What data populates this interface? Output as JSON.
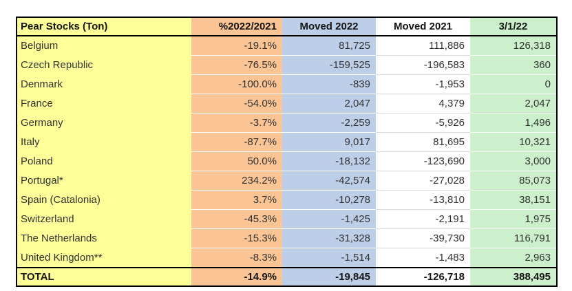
{
  "colors": {
    "page_background": "#ffffff",
    "table_border": "#000000",
    "text": "#313131",
    "header_text": "#141414",
    "col_country_bg": "#FFFF99",
    "col_pct_bg": "#FAC494",
    "col_moved2022_bg": "#BDCEE8",
    "col_moved2021_bg": "#FFFFFF",
    "col_stock_bg": "#CBF0CB",
    "row_separator_tinted": "rgba(255,255,255,0.55)",
    "row_separator_plain": "#d9d9d9"
  },
  "table": {
    "columns": [
      {
        "id": "country",
        "label": "Pear Stocks (Ton)",
        "bg": "#FFFF99",
        "align": "left",
        "header_align": "left"
      },
      {
        "id": "pct",
        "label": "%2022/2021",
        "bg": "#FAC494",
        "align": "right",
        "header_align": "right"
      },
      {
        "id": "moved2022",
        "label": "Moved 2022",
        "bg": "#BDCEE8",
        "align": "right",
        "header_align": "center"
      },
      {
        "id": "moved2021",
        "label": "Moved 2021",
        "bg": "#FFFFFF",
        "align": "right",
        "header_align": "center"
      },
      {
        "id": "stock",
        "label": "3/1/22",
        "bg": "#CBF0CB",
        "align": "right",
        "header_align": "center"
      }
    ],
    "rows": [
      {
        "country": "Belgium",
        "pct": "-19.1%",
        "moved2022": "81,725",
        "moved2021": "111,886",
        "stock": "126,318"
      },
      {
        "country": "Czech Republic",
        "pct": "-76.5%",
        "moved2022": "-159,525",
        "moved2021": "-196,583",
        "stock": "360"
      },
      {
        "country": "Denmark",
        "pct": "-100.0%",
        "moved2022": "-839",
        "moved2021": "-1,953",
        "stock": "0"
      },
      {
        "country": "France",
        "pct": "-54.0%",
        "moved2022": "2,047",
        "moved2021": "4,379",
        "stock": "2,047"
      },
      {
        "country": "Germany",
        "pct": "-3.7%",
        "moved2022": "-2,259",
        "moved2021": "-5,926",
        "stock": "1,496"
      },
      {
        "country": "Italy",
        "pct": "-87.7%",
        "moved2022": "9,017",
        "moved2021": "81,695",
        "stock": "10,321"
      },
      {
        "country": "Poland",
        "pct": "50.0%",
        "moved2022": "-18,132",
        "moved2021": "-123,690",
        "stock": "3,000"
      },
      {
        "country": "Portugal*",
        "pct": "234.2%",
        "moved2022": "-42,574",
        "moved2021": "-27,028",
        "stock": "85,073"
      },
      {
        "country": "Spain (Catalonia)",
        "pct": "3.7%",
        "moved2022": "-10,278",
        "moved2021": "-13,810",
        "stock": "38,151"
      },
      {
        "country": "Switzerland",
        "pct": "-45.3%",
        "moved2022": "-1,425",
        "moved2021": "-2,191",
        "stock": "1,975"
      },
      {
        "country": "The Netherlands",
        "pct": "-15.3%",
        "moved2022": "-31,328",
        "moved2021": "-39,730",
        "stock": "116,791"
      },
      {
        "country": "United Kingdom**",
        "pct": "-8.3%",
        "moved2022": "-1,514",
        "moved2021": "-1,483",
        "stock": "2,963"
      }
    ],
    "total_row": {
      "country": "TOTAL",
      "pct": "-14.9%",
      "moved2022": "-19,845",
      "moved2021": "-126,718",
      "stock": "388,495"
    }
  }
}
